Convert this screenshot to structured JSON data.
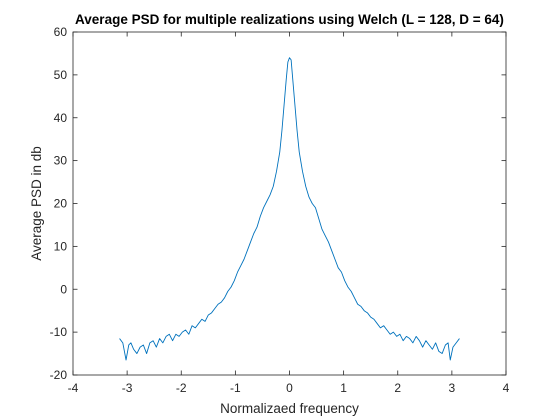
{
  "chart_data": {
    "type": "line",
    "title": "Average PSD for multiple realizations using Welch (L = 128, D = 64)",
    "xlabel": "Normalizaed frequency",
    "ylabel": "Average PSD in db",
    "xlim": [
      -4,
      4
    ],
    "ylim": [
      -20,
      60
    ],
    "xticks": [
      -4,
      -3,
      -2,
      -1,
      0,
      1,
      2,
      3,
      4
    ],
    "yticks": [
      -20,
      -10,
      0,
      10,
      20,
      30,
      40,
      50,
      60
    ],
    "xtick_labels": [
      "-4",
      "-3",
      "-2",
      "-1",
      "0",
      "1",
      "2",
      "3",
      "4"
    ],
    "ytick_labels": [
      "-20",
      "-10",
      "0",
      "10",
      "20",
      "30",
      "40",
      "50",
      "60"
    ],
    "grid": false,
    "line_color": "#0072BD",
    "series": [
      {
        "x": [
          -3.14,
          -3.08,
          -3.02,
          -2.97,
          -2.93,
          -2.88,
          -2.82,
          -2.76,
          -2.7,
          -2.64,
          -2.58,
          -2.52,
          -2.46,
          -2.4,
          -2.34,
          -2.28,
          -2.22,
          -2.16,
          -2.1,
          -2.04,
          -1.98,
          -1.92,
          -1.86,
          -1.8,
          -1.74,
          -1.68,
          -1.62,
          -1.56,
          -1.5,
          -1.44,
          -1.38,
          -1.32,
          -1.26,
          -1.2,
          -1.14,
          -1.08,
          -1.02,
          -0.96,
          -0.9,
          -0.84,
          -0.78,
          -0.72,
          -0.66,
          -0.6,
          -0.54,
          -0.48,
          -0.42,
          -0.36,
          -0.3,
          -0.24,
          -0.18,
          -0.14,
          -0.1,
          -0.06,
          -0.03,
          0.0,
          0.03,
          0.06,
          0.1,
          0.14,
          0.18,
          0.24,
          0.3,
          0.36,
          0.42,
          0.48,
          0.54,
          0.6,
          0.66,
          0.72,
          0.78,
          0.84,
          0.9,
          0.96,
          1.02,
          1.08,
          1.14,
          1.2,
          1.26,
          1.32,
          1.38,
          1.44,
          1.5,
          1.56,
          1.62,
          1.68,
          1.74,
          1.8,
          1.86,
          1.92,
          1.98,
          2.04,
          2.1,
          2.16,
          2.22,
          2.28,
          2.34,
          2.4,
          2.46,
          2.52,
          2.58,
          2.64,
          2.7,
          2.76,
          2.82,
          2.88,
          2.93,
          2.97,
          3.02,
          3.08,
          3.14
        ],
        "y": [
          -11.5,
          -12.5,
          -16.5,
          -13.0,
          -12.5,
          -14.0,
          -15.0,
          -13.5,
          -13.0,
          -15.0,
          -12.5,
          -12.0,
          -13.5,
          -11.5,
          -12.5,
          -11.0,
          -10.5,
          -12.0,
          -10.5,
          -11.0,
          -10.0,
          -9.5,
          -10.5,
          -8.5,
          -9.0,
          -8.0,
          -7.0,
          -7.5,
          -6.0,
          -5.5,
          -4.5,
          -3.5,
          -3.0,
          -2.0,
          -0.5,
          0.5,
          2.0,
          4.0,
          5.5,
          7.0,
          9.0,
          11.0,
          13.0,
          14.5,
          17.0,
          19.0,
          20.5,
          22.0,
          24.0,
          27.5,
          32.0,
          37.0,
          43.0,
          49.0,
          53.0,
          54.0,
          53.5,
          49.0,
          43.0,
          37.0,
          32.0,
          27.5,
          24.0,
          21.5,
          20.0,
          19.0,
          16.5,
          14.0,
          12.5,
          11.0,
          9.0,
          7.0,
          5.0,
          4.0,
          2.0,
          0.5,
          -0.5,
          -2.0,
          -3.5,
          -4.0,
          -5.0,
          -5.5,
          -6.5,
          -7.0,
          -8.0,
          -9.0,
          -8.5,
          -9.5,
          -10.5,
          -10.0,
          -11.0,
          -10.5,
          -12.0,
          -11.0,
          -11.5,
          -12.5,
          -11.0,
          -12.0,
          -13.5,
          -12.0,
          -13.0,
          -14.0,
          -12.5,
          -14.5,
          -15.0,
          -13.0,
          -12.5,
          -16.5,
          -13.5,
          -12.5,
          -11.5
        ]
      }
    ]
  }
}
